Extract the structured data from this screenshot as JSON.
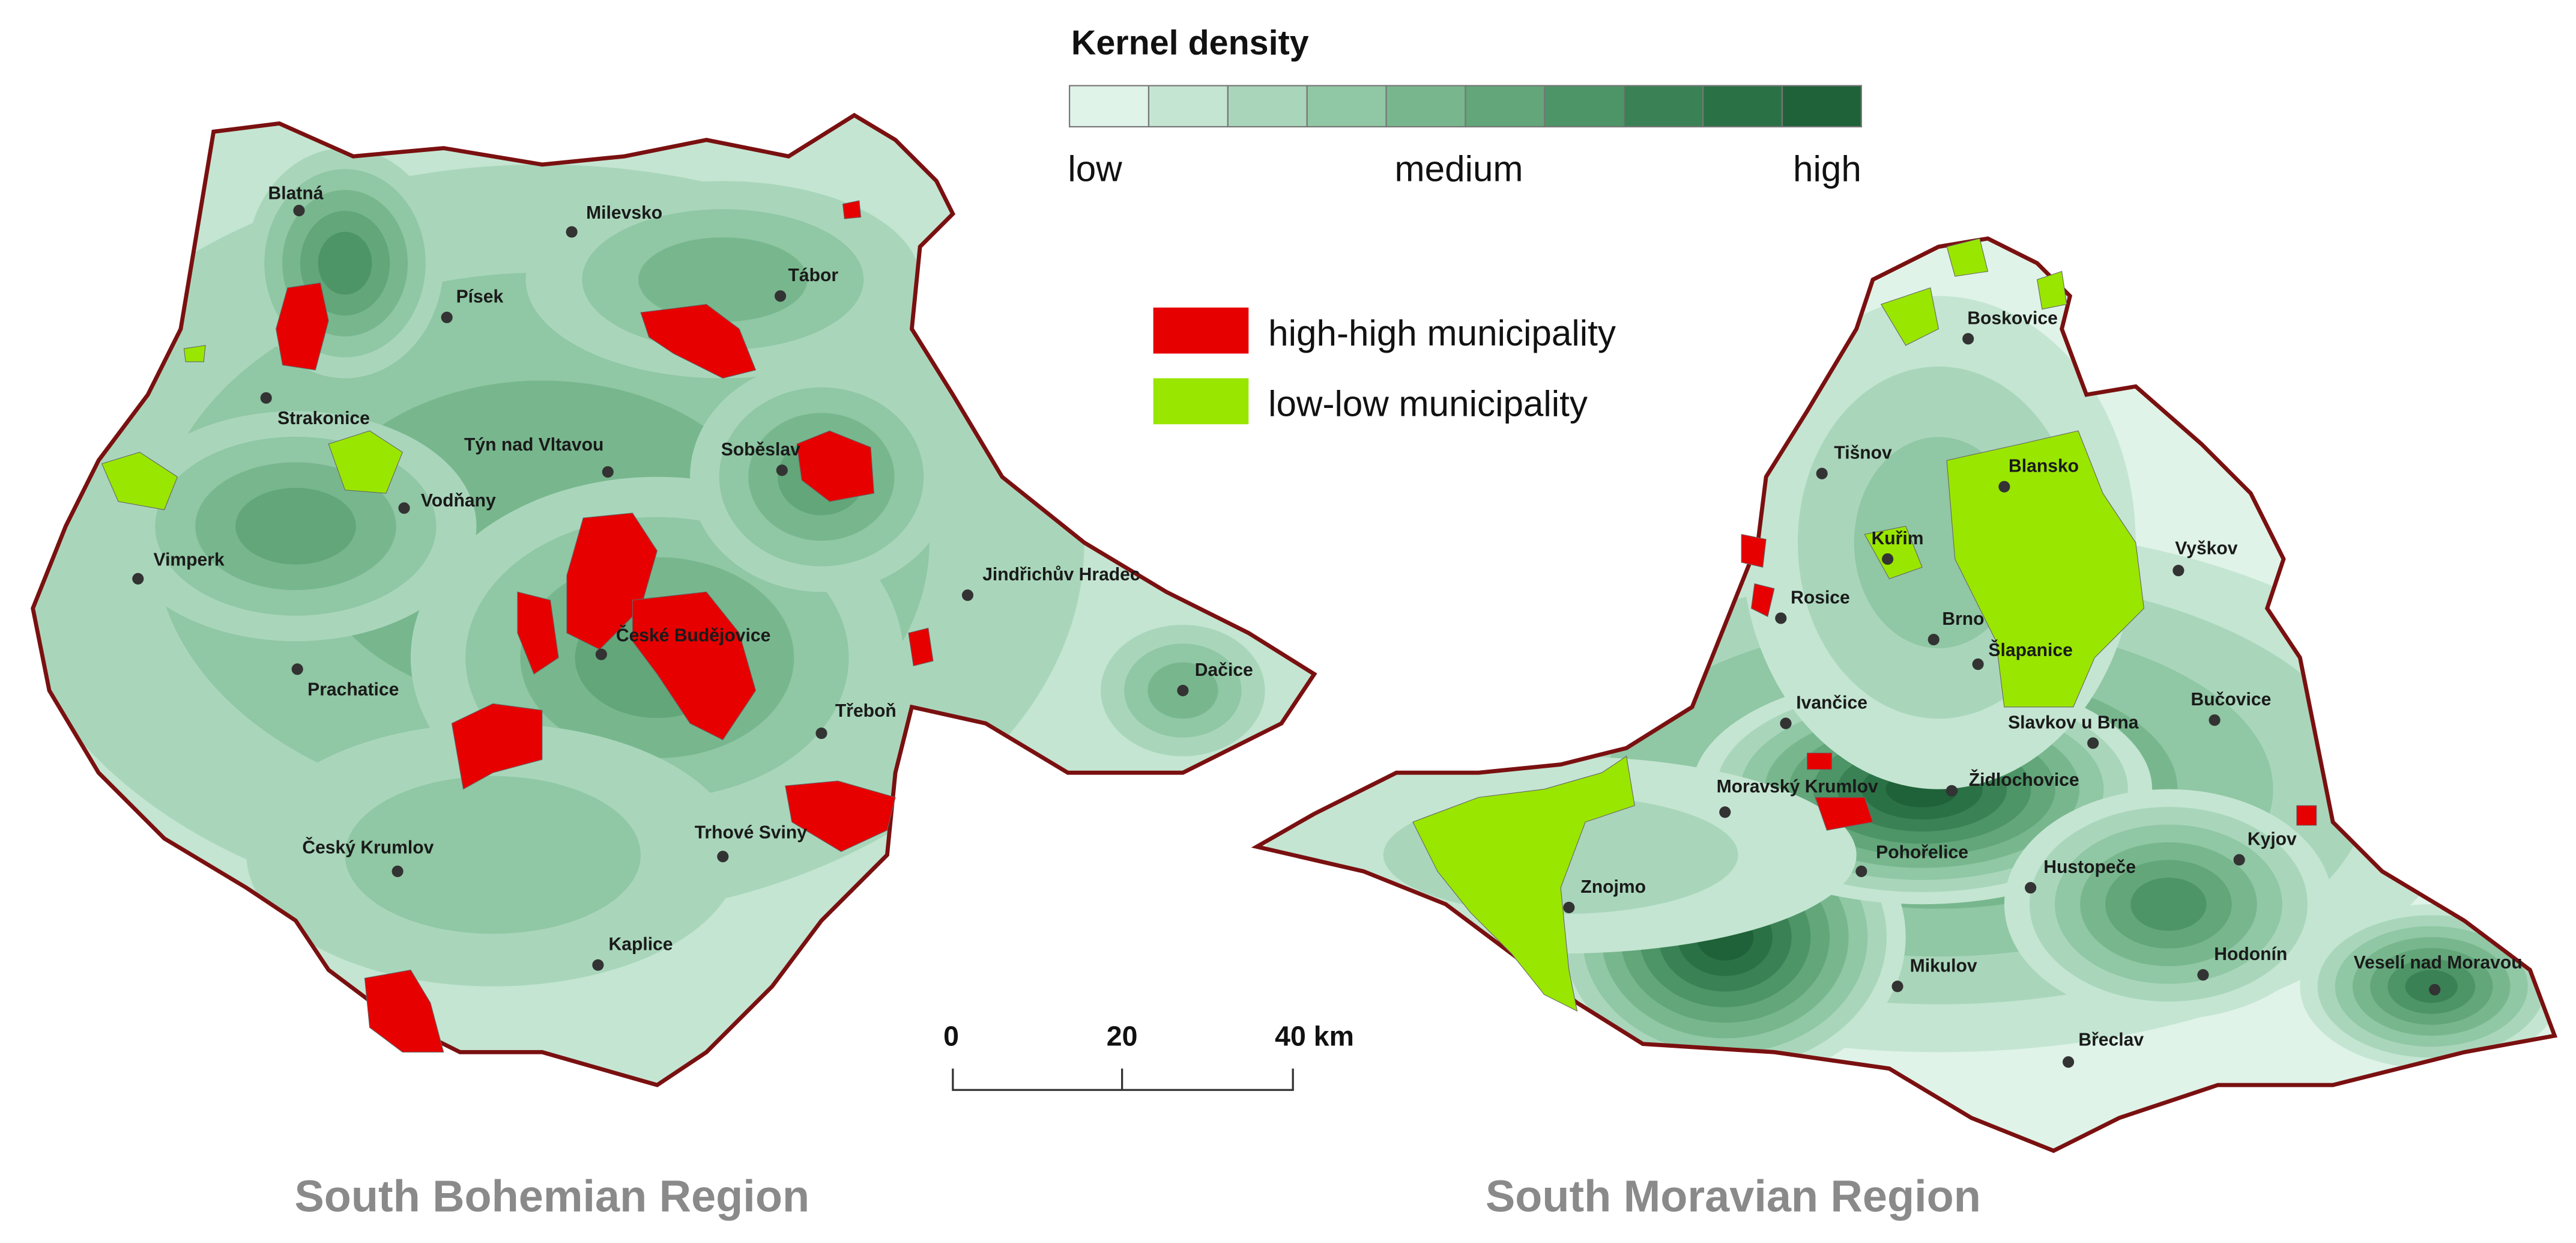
{
  "legend": {
    "title": "Kernel density",
    "low": "low",
    "medium": "medium",
    "high": "high",
    "colors": [
      "#dff3e8",
      "#c4e5d2",
      "#a9d6bb",
      "#90c7a4",
      "#78b78e",
      "#62a67a",
      "#4d9466",
      "#3a8255",
      "#2b7146",
      "#1f6138"
    ]
  },
  "categories": [
    {
      "label": "high-high municipality",
      "color": "#e60000"
    },
    {
      "label": "low-low municipality",
      "color": "#99e600"
    }
  ],
  "cities": [
    "Blatná",
    "Milevsko",
    "Písek",
    "Tábor",
    "Strakonice",
    "Týn nad Vltavou",
    "Soběslav",
    "Vodňany",
    "Vimperk",
    "Jindřichův Hradec",
    "České Budějovice",
    "Dačice",
    "Prachatice",
    "Třeboň",
    "Český Krumlov",
    "Trhové Sviny",
    "Kaplice",
    "Boskovice",
    "Tišnov",
    "Blansko",
    "Kuřim",
    "Vyškov",
    "Rosice",
    "Brno",
    "Šlapanice",
    "Ivančice",
    "Bučovice",
    "Slavkov u Brna",
    "Moravský Krumlov",
    "Židlochovice",
    "Kyjov",
    "Pohořelice",
    "Hustopeče",
    "Znojmo",
    "Mikulov",
    "Hodonín",
    "Veselí nad Moravou",
    "Břeclav"
  ],
  "scale_bar": [
    "0",
    "20",
    "40 km"
  ],
  "regions": [
    "South Bohemian Region",
    "South Moravian Region"
  ]
}
